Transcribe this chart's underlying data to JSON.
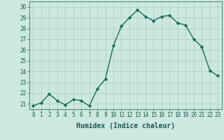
{
  "x": [
    0,
    1,
    2,
    3,
    4,
    5,
    6,
    7,
    8,
    9,
    10,
    11,
    12,
    13,
    14,
    15,
    16,
    17,
    18,
    19,
    20,
    21,
    22,
    23
  ],
  "y": [
    20.8,
    21.1,
    21.9,
    21.3,
    20.9,
    21.4,
    21.3,
    20.8,
    22.4,
    23.3,
    26.4,
    28.2,
    29.0,
    29.7,
    29.1,
    28.7,
    29.1,
    29.2,
    28.5,
    28.3,
    27.0,
    26.3,
    24.1,
    23.6
  ],
  "line_color": "#1a6b5a",
  "marker": "D",
  "markersize": 2.2,
  "linewidth": 1.0,
  "xlabel": "Humidex (Indice chaleur)",
  "xlim": [
    -0.5,
    23.5
  ],
  "ylim": [
    20.5,
    30.5
  ],
  "yticks": [
    21,
    22,
    23,
    24,
    25,
    26,
    27,
    28,
    29,
    30
  ],
  "xticks": [
    0,
    1,
    2,
    3,
    4,
    5,
    6,
    7,
    8,
    9,
    10,
    11,
    12,
    13,
    14,
    15,
    16,
    17,
    18,
    19,
    20,
    21,
    22,
    23
  ],
  "bg_color": "#cce8e0",
  "grid_color": "#b0d0c8",
  "tick_fontsize": 5.5,
  "xlabel_fontsize": 7.0,
  "tick_color": "#1a5a50",
  "spine_color": "#5a8a80"
}
